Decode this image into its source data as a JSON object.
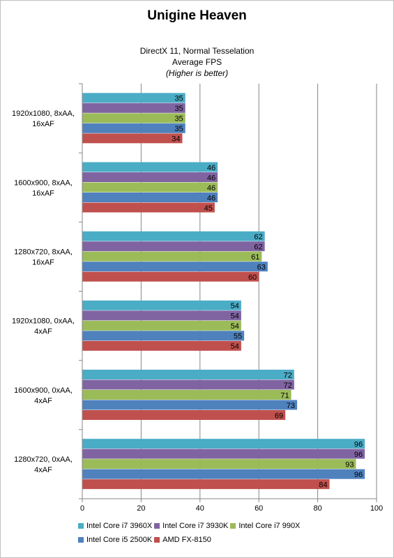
{
  "chart_data": {
    "type": "bar",
    "orientation": "horizontal",
    "title": "Unigine Heaven",
    "subtitle_lines": [
      "DirectX 11, Normal Tesselation",
      "Average FPS",
      "(Higher is better)"
    ],
    "categories": [
      "1920x1080, 8xAA, 16xAF",
      "1600x900, 8xAA, 16xAF",
      "1280x720, 8xAA, 16xAF",
      "1920x1080, 0xAA, 4xAF",
      "1600x900, 0xAA, 4xAF",
      "1280x720, 0xAA, 4xAF"
    ],
    "series": [
      {
        "name": "Intel Core i7 3960X",
        "color": "#4bacc6",
        "values": [
          35,
          46,
          62,
          54,
          72,
          96
        ]
      },
      {
        "name": "Intel Core i7 3930K",
        "color": "#8064a2",
        "values": [
          35,
          46,
          62,
          54,
          72,
          96
        ]
      },
      {
        "name": "Intel Core i7 990X",
        "color": "#9bbb59",
        "values": [
          35,
          46,
          61,
          54,
          71,
          93
        ]
      },
      {
        "name": "Intel Core i5 2500K",
        "color": "#4f81bd",
        "values": [
          35,
          46,
          63,
          55,
          73,
          96
        ]
      },
      {
        "name": "AMD FX-8150",
        "color": "#c0504d",
        "values": [
          34,
          45,
          60,
          54,
          69,
          84
        ]
      }
    ],
    "xlim": [
      0,
      100
    ],
    "xticks": [
      0,
      20,
      40,
      60,
      80,
      100
    ],
    "grid": true,
    "data_labels": true,
    "legend_position": "bottom"
  }
}
